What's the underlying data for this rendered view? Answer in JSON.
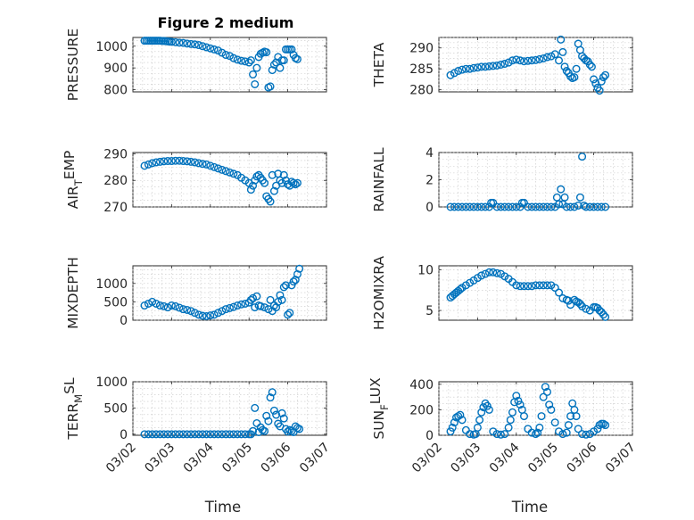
{
  "title": "Figure 2 medium",
  "xlabel": "Time",
  "x_ticks": [
    "03/02",
    "03/03",
    "03/04",
    "03/05",
    "03/06",
    "03/07"
  ],
  "colors": {
    "marker": "#0072BD",
    "axes": "#262626",
    "grid": "#c8c8c8"
  },
  "chart_data": [
    {
      "type": "scatter",
      "ylabel": "PRESSURE",
      "ylim": [
        790,
        1040
      ],
      "yticks": [
        800,
        900,
        1000
      ],
      "grid": true,
      "show_xticks": false,
      "x": [
        2.3,
        2.35,
        2.4,
        2.45,
        2.5,
        2.55,
        2.6,
        2.65,
        2.7,
        2.75,
        2.8,
        2.85,
        2.9,
        2.95,
        3.0,
        3.1,
        3.2,
        3.3,
        3.4,
        3.5,
        3.6,
        3.7,
        3.8,
        3.9,
        4.0,
        4.1,
        4.2,
        4.3,
        4.4,
        4.5,
        4.6,
        4.7,
        4.8,
        4.9,
        5.0,
        5.05,
        5.1,
        5.15,
        5.2,
        5.25,
        5.3,
        5.35,
        5.4,
        5.45,
        5.5,
        5.55,
        5.6,
        5.65,
        5.7,
        5.75,
        5.8,
        5.85,
        5.9,
        5.95,
        6.0,
        6.05,
        6.1,
        6.15,
        6.2,
        6.25
      ],
      "y": [
        1025,
        1025,
        1025,
        1025,
        1025,
        1025,
        1025,
        1025,
        1025,
        1024,
        1024,
        1023,
        1022,
        1021,
        1020,
        1018,
        1016,
        1015,
        1012,
        1010,
        1008,
        1005,
        1000,
        995,
        990,
        985,
        980,
        970,
        960,
        955,
        945,
        938,
        933,
        930,
        925,
        935,
        870,
        825,
        900,
        950,
        965,
        970,
        975,
        972,
        810,
        815,
        890,
        915,
        925,
        950,
        900,
        935,
        935,
        985,
        985,
        985,
        985,
        960,
        945,
        940
      ]
    },
    {
      "type": "scatter",
      "ylabel": "THETA",
      "ylim": [
        279.5,
        292.5
      ],
      "yticks": [
        280,
        285,
        290
      ],
      "grid": true,
      "show_xticks": false,
      "x": [
        2.3,
        2.4,
        2.5,
        2.6,
        2.7,
        2.8,
        2.9,
        3.0,
        3.1,
        3.2,
        3.3,
        3.4,
        3.5,
        3.6,
        3.7,
        3.8,
        3.9,
        4.0,
        4.1,
        4.2,
        4.3,
        4.4,
        4.5,
        4.6,
        4.7,
        4.8,
        4.9,
        5.0,
        5.1,
        5.15,
        5.2,
        5.25,
        5.3,
        5.35,
        5.4,
        5.45,
        5.5,
        5.55,
        5.6,
        5.65,
        5.7,
        5.75,
        5.8,
        5.85,
        5.9,
        5.95,
        6.0,
        6.05,
        6.1,
        6.15,
        6.2,
        6.25,
        6.3
      ],
      "y": [
        283.5,
        284,
        284.5,
        284.8,
        285,
        285,
        285.2,
        285.3,
        285.5,
        285.5,
        285.6,
        285.7,
        285.8,
        286,
        286.2,
        286.5,
        287,
        287.2,
        287,
        286.8,
        286.9,
        287,
        287.1,
        287.3,
        287.5,
        287.8,
        288,
        288.5,
        287,
        292,
        289,
        285.5,
        284.5,
        284,
        283.2,
        282.8,
        283,
        285,
        291,
        289.5,
        288,
        287.5,
        287,
        286.8,
        286,
        285.5,
        282.5,
        281.5,
        280.5,
        279.8,
        282,
        283,
        283.5
      ]
    },
    {
      "type": "scatter",
      "ylabel": "AIR_TEMP",
      "ylim": [
        270,
        290.5
      ],
      "yticks": [
        270,
        280,
        290
      ],
      "grid": true,
      "show_xticks": false,
      "x": [
        2.3,
        2.4,
        2.5,
        2.6,
        2.7,
        2.8,
        2.9,
        3.0,
        3.1,
        3.2,
        3.3,
        3.4,
        3.5,
        3.6,
        3.7,
        3.8,
        3.9,
        4.0,
        4.1,
        4.2,
        4.3,
        4.4,
        4.5,
        4.6,
        4.7,
        4.8,
        4.9,
        5.0,
        5.05,
        5.1,
        5.15,
        5.2,
        5.25,
        5.3,
        5.35,
        5.4,
        5.45,
        5.5,
        5.55,
        5.6,
        5.65,
        5.7,
        5.75,
        5.8,
        5.85,
        5.9,
        5.95,
        6.0,
        6.05,
        6.1,
        6.15,
        6.2,
        6.25
      ],
      "y": [
        285.5,
        286,
        286.5,
        286.8,
        287,
        287.2,
        287.3,
        287.3,
        287.4,
        287.4,
        287.3,
        287.2,
        287,
        286.8,
        286.5,
        286.2,
        286,
        285.5,
        285,
        284.5,
        284,
        283.5,
        283,
        282.5,
        282,
        281,
        280,
        279,
        276.5,
        278,
        280,
        281.5,
        282,
        281,
        280,
        279,
        274,
        273,
        272,
        282,
        276,
        278,
        282.5,
        280,
        279,
        282,
        280,
        278.5,
        278,
        279.5,
        279,
        278.5,
        279
      ]
    },
    {
      "type": "scatter",
      "ylabel": "RAINFALL",
      "ylim": [
        0,
        4
      ],
      "yticks": [
        0,
        2,
        4
      ],
      "grid": true,
      "show_xticks": false,
      "x": [
        2.3,
        2.4,
        2.5,
        2.6,
        2.7,
        2.8,
        2.9,
        3.0,
        3.1,
        3.2,
        3.3,
        3.35,
        3.4,
        3.5,
        3.6,
        3.7,
        3.8,
        3.9,
        4.0,
        4.1,
        4.15,
        4.2,
        4.3,
        4.4,
        4.5,
        4.6,
        4.7,
        4.8,
        4.9,
        5.0,
        5.05,
        5.1,
        5.15,
        5.2,
        5.25,
        5.3,
        5.4,
        5.5,
        5.6,
        5.65,
        5.7,
        5.75,
        5.8,
        5.9,
        6.0,
        6.1,
        6.2,
        6.3
      ],
      "y": [
        0,
        0,
        0,
        0,
        0,
        0,
        0,
        0,
        0,
        0,
        0,
        0.3,
        0.3,
        0,
        0,
        0,
        0,
        0,
        0,
        0,
        0.3,
        0.3,
        0,
        0,
        0,
        0,
        0,
        0,
        0,
        0,
        0.7,
        0.2,
        1.3,
        0.2,
        0.7,
        0,
        0,
        0,
        0.1,
        0.7,
        3.7,
        0.1,
        0,
        0,
        0,
        0,
        0,
        0
      ]
    },
    {
      "type": "scatter",
      "ylabel": "MIXDEPTH",
      "ylim": [
        0,
        1480
      ],
      "yticks": [
        0,
        500,
        1000
      ],
      "grid": true,
      "show_xticks": false,
      "x": [
        2.3,
        2.4,
        2.5,
        2.6,
        2.7,
        2.8,
        2.9,
        3.0,
        3.1,
        3.2,
        3.3,
        3.4,
        3.5,
        3.6,
        3.7,
        3.8,
        3.9,
        4.0,
        4.1,
        4.2,
        4.3,
        4.4,
        4.5,
        4.6,
        4.7,
        4.8,
        4.9,
        5.0,
        5.05,
        5.1,
        5.15,
        5.2,
        5.25,
        5.3,
        5.4,
        5.5,
        5.55,
        5.6,
        5.65,
        5.7,
        5.75,
        5.8,
        5.85,
        5.9,
        5.95,
        6.0,
        6.05,
        6.1,
        6.15,
        6.2,
        6.25,
        6.3
      ],
      "y": [
        400,
        450,
        500,
        450,
        400,
        380,
        350,
        400,
        380,
        340,
        300,
        280,
        250,
        200,
        150,
        120,
        110,
        130,
        150,
        200,
        250,
        300,
        330,
        360,
        400,
        430,
        450,
        480,
        550,
        600,
        350,
        650,
        400,
        380,
        350,
        300,
        550,
        250,
        400,
        350,
        500,
        680,
        550,
        900,
        950,
        150,
        200,
        950,
        1050,
        1100,
        1250,
        1400
      ]
    },
    {
      "type": "scatter",
      "ylabel": "H2OMIXRA",
      "ylim": [
        3.8,
        10.5
      ],
      "yticks": [
        5,
        10
      ],
      "grid": true,
      "show_xticks": false,
      "x": [
        2.3,
        2.35,
        2.4,
        2.45,
        2.5,
        2.55,
        2.6,
        2.7,
        2.8,
        2.9,
        3.0,
        3.1,
        3.2,
        3.3,
        3.4,
        3.5,
        3.6,
        3.7,
        3.8,
        3.9,
        4.0,
        4.1,
        4.2,
        4.3,
        4.4,
        4.5,
        4.6,
        4.7,
        4.8,
        4.9,
        5.0,
        5.1,
        5.2,
        5.3,
        5.35,
        5.4,
        5.5,
        5.55,
        5.6,
        5.65,
        5.7,
        5.8,
        5.9,
        6.0,
        6.05,
        6.1,
        6.15,
        6.2,
        6.25,
        6.3
      ],
      "y": [
        6.6,
        6.8,
        7,
        7.2,
        7.4,
        7.6,
        7.8,
        8.1,
        8.4,
        8.7,
        9,
        9.3,
        9.5,
        9.7,
        9.7,
        9.6,
        9.5,
        9.2,
        8.9,
        8.5,
        8.1,
        8,
        8,
        8,
        8,
        8.1,
        8.1,
        8.1,
        8.1,
        8.1,
        7.8,
        7.2,
        6.5,
        6.3,
        6.2,
        5.7,
        6.3,
        6.1,
        6,
        5.8,
        5.5,
        5.2,
        5,
        5.4,
        5.4,
        5.3,
        5,
        4.8,
        4.5,
        4.2
      ]
    },
    {
      "type": "scatter",
      "ylabel": "TERR_MSL",
      "ylim": [
        -20,
        1000
      ],
      "yticks": [
        0,
        500,
        1000
      ],
      "grid": true,
      "show_xticks": true,
      "x": [
        2.3,
        2.4,
        2.5,
        2.6,
        2.7,
        2.8,
        2.9,
        3.0,
        3.1,
        3.2,
        3.3,
        3.4,
        3.5,
        3.6,
        3.7,
        3.8,
        3.9,
        4.0,
        4.1,
        4.2,
        4.3,
        4.4,
        4.5,
        4.6,
        4.7,
        4.8,
        4.9,
        5.0,
        5.05,
        5.1,
        5.15,
        5.2,
        5.25,
        5.3,
        5.35,
        5.4,
        5.45,
        5.5,
        5.55,
        5.6,
        5.65,
        5.7,
        5.75,
        5.8,
        5.85,
        5.9,
        5.95,
        6.0,
        6.05,
        6.1,
        6.15,
        6.2,
        6.25,
        6.3
      ],
      "y": [
        0,
        0,
        0,
        0,
        0,
        0,
        0,
        0,
        0,
        0,
        0,
        0,
        0,
        0,
        0,
        0,
        0,
        0,
        0,
        0,
        0,
        0,
        0,
        0,
        0,
        0,
        0,
        0,
        0,
        60,
        500,
        210,
        40,
        130,
        80,
        60,
        350,
        250,
        700,
        800,
        450,
        370,
        200,
        150,
        400,
        300,
        100,
        50,
        80,
        60,
        40,
        150,
        120,
        100
      ]
    },
    {
      "type": "scatter",
      "ylabel": "SUN_FLUX",
      "ylim": [
        0,
        420
      ],
      "yticks": [
        0,
        200,
        400
      ],
      "grid": true,
      "show_xticks": true,
      "x": [
        2.3,
        2.35,
        2.4,
        2.45,
        2.5,
        2.55,
        2.6,
        2.7,
        2.8,
        2.9,
        2.95,
        3.0,
        3.05,
        3.1,
        3.15,
        3.2,
        3.25,
        3.3,
        3.4,
        3.5,
        3.6,
        3.7,
        3.8,
        3.85,
        3.9,
        3.95,
        4.0,
        4.05,
        4.1,
        4.15,
        4.2,
        4.3,
        4.4,
        4.5,
        4.55,
        4.6,
        4.65,
        4.7,
        4.75,
        4.8,
        4.85,
        4.9,
        5.0,
        5.1,
        5.2,
        5.3,
        5.35,
        5.4,
        5.45,
        5.5,
        5.55,
        5.6,
        5.7,
        5.8,
        5.9,
        6.0,
        6.1,
        6.15,
        6.2,
        6.25,
        6.3
      ],
      "y": [
        30,
        60,
        100,
        140,
        150,
        160,
        120,
        40,
        10,
        5,
        10,
        60,
        120,
        180,
        220,
        250,
        230,
        200,
        30,
        10,
        5,
        10,
        60,
        120,
        180,
        260,
        310,
        270,
        240,
        200,
        150,
        50,
        20,
        10,
        20,
        60,
        150,
        300,
        380,
        340,
        240,
        200,
        100,
        30,
        10,
        20,
        80,
        150,
        250,
        200,
        150,
        50,
        10,
        5,
        10,
        30,
        50,
        80,
        90,
        90,
        80
      ]
    }
  ]
}
